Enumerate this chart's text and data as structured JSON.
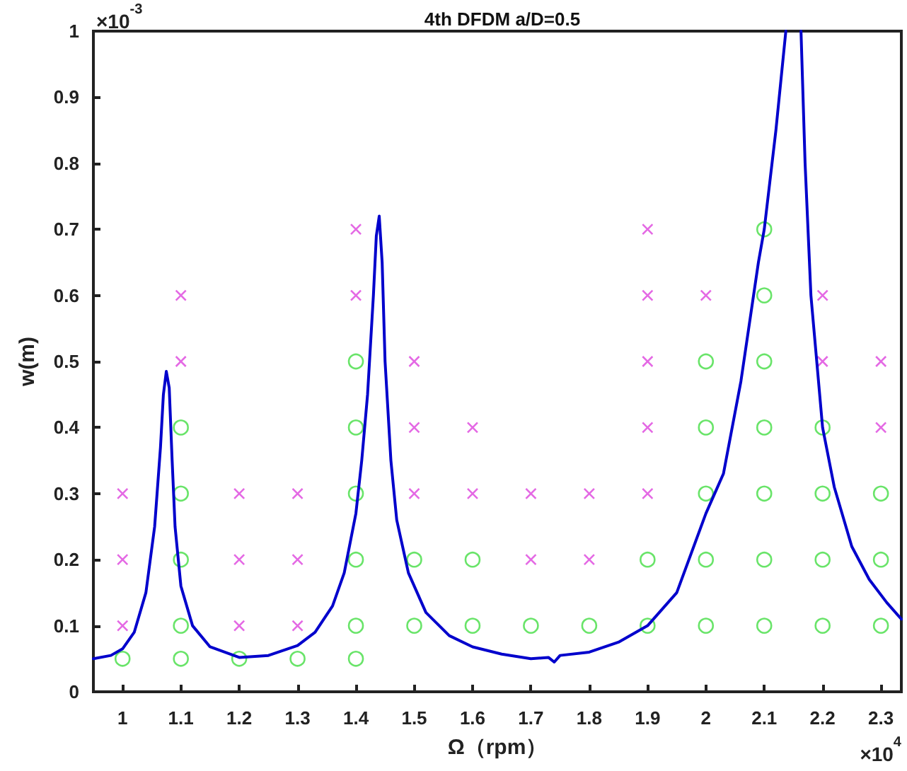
{
  "chart_data": {
    "type": "scatter",
    "title": "4th DFDM a/D=0.5",
    "xlabel": "Ω（rpm）",
    "ylabel": "w(m)",
    "annotations": [
      "×10$^{-3}$",
      "×10$^{4}$"
    ],
    "xlim": [
      0.95,
      2.335
    ],
    "xticks": [
      1,
      1.1,
      1.2,
      1.3,
      1.4,
      1.5,
      1.6,
      1.7,
      1.8,
      1.9,
      2,
      2.1,
      2.2,
      2.3
    ],
    "ylim": [
      0,
      1
    ],
    "yticks": [
      0,
      0.1,
      0.2,
      0.3,
      0.4,
      0.5,
      0.6,
      0.7,
      0.8,
      0.9,
      1
    ],
    "grid": false,
    "series": [
      {
        "type": "line",
        "color": "#0000cc",
        "marker": "none",
        "line_style": "solid",
        "x": [
          0.95,
          0.98,
          1.0,
          1.02,
          1.04,
          1.055,
          1.065,
          1.07,
          1.075,
          1.08,
          1.085,
          1.09,
          1.1,
          1.12,
          1.15,
          1.2,
          1.25,
          1.3,
          1.33,
          1.36,
          1.38,
          1.4,
          1.41,
          1.42,
          1.43,
          1.435,
          1.44,
          1.445,
          1.45,
          1.46,
          1.47,
          1.49,
          1.52,
          1.56,
          1.6,
          1.65,
          1.7,
          1.73,
          1.74,
          1.75,
          1.8,
          1.85,
          1.9,
          1.95,
          2.0,
          2.03,
          2.06,
          2.09,
          2.1,
          2.12,
          2.137,
          2.15,
          2.163,
          2.17,
          2.18,
          2.2,
          2.22,
          2.25,
          2.28,
          2.31,
          2.335
        ],
        "values": [
          0.05,
          0.055,
          0.065,
          0.09,
          0.15,
          0.25,
          0.37,
          0.45,
          0.485,
          0.46,
          0.35,
          0.25,
          0.16,
          0.1,
          0.068,
          0.052,
          0.055,
          0.07,
          0.09,
          0.13,
          0.18,
          0.27,
          0.35,
          0.45,
          0.6,
          0.69,
          0.72,
          0.65,
          0.5,
          0.35,
          0.26,
          0.18,
          0.12,
          0.085,
          0.068,
          0.057,
          0.05,
          0.052,
          0.045,
          0.055,
          0.06,
          0.075,
          0.1,
          0.15,
          0.27,
          0.33,
          0.47,
          0.65,
          0.7,
          0.85,
          1.0,
          null,
          1.0,
          0.8,
          0.6,
          0.4,
          0.31,
          0.22,
          0.17,
          0.135,
          0.11
        ]
      },
      {
        "color": "#dd44dd",
        "marker": "cross",
        "x": [
          1,
          1,
          1,
          1.1,
          1.1,
          1.2,
          1.2,
          1.2,
          1.3,
          1.3,
          1.3,
          1.4,
          1.4,
          1.5,
          1.5,
          1.5,
          1.6,
          1.6,
          1.7,
          1.7,
          1.8,
          1.8,
          1.9,
          1.9,
          1.9,
          1.9,
          1.9,
          2,
          2.2,
          2.2,
          2.3,
          2.3
        ],
        "values": [
          0.1,
          0.2,
          0.3,
          0.5,
          0.6,
          0.1,
          0.2,
          0.3,
          0.1,
          0.2,
          0.3,
          0.6,
          0.7,
          0.3,
          0.4,
          0.5,
          0.3,
          0.4,
          0.2,
          0.3,
          0.2,
          0.3,
          0.3,
          0.4,
          0.5,
          0.6,
          0.7,
          0.6,
          0.5,
          0.6,
          0.4,
          0.5
        ]
      },
      {
        "color": "#44dd44",
        "marker": "circle",
        "x": [
          1,
          1.1,
          1.1,
          1.1,
          1.1,
          1.1,
          1.2,
          1.3,
          1.4,
          1.4,
          1.4,
          1.4,
          1.4,
          1.4,
          1.5,
          1.5,
          1.6,
          1.6,
          1.7,
          1.8,
          1.9,
          1.9,
          2,
          2,
          2,
          2,
          2,
          2.1,
          2.1,
          2.1,
          2.1,
          2.1,
          2.1,
          2.1,
          2.2,
          2.2,
          2.2,
          2.2,
          2.3,
          2.3,
          2.3
        ],
        "values": [
          0.05,
          0.05,
          0.1,
          0.2,
          0.3,
          0.4,
          0.05,
          0.05,
          0.05,
          0.1,
          0.2,
          0.3,
          0.4,
          0.5,
          0.1,
          0.2,
          0.1,
          0.2,
          0.1,
          0.1,
          0.1,
          0.2,
          0.1,
          0.2,
          0.3,
          0.4,
          0.5,
          0.1,
          0.2,
          0.3,
          0.4,
          0.5,
          0.6,
          0.7,
          0.1,
          0.2,
          0.3,
          0.4,
          0.1,
          0.2,
          0.3
        ]
      }
    ]
  }
}
